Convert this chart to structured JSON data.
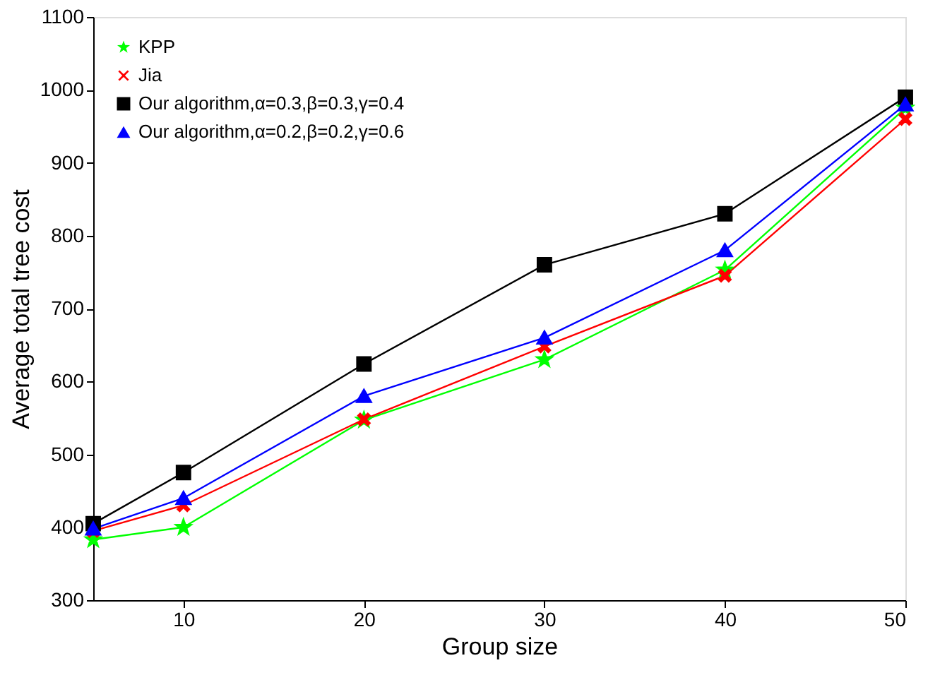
{
  "chart_data": {
    "type": "line",
    "xlabel": "Group size",
    "ylabel": "Average total tree cost",
    "x": [
      5,
      10,
      20,
      30,
      40,
      50
    ],
    "xlim": [
      5,
      50
    ],
    "xticks": [
      10,
      20,
      30,
      40,
      50
    ],
    "ylim": [
      300,
      1100
    ],
    "yticks": [
      300,
      400,
      500,
      600,
      700,
      800,
      900,
      1000,
      1100
    ],
    "grid": false,
    "legend": "top left",
    "series": [
      {
        "name": "KPP",
        "color": "#00ff00",
        "marker": "star",
        "values": [
          383,
          400,
          547,
          630,
          753,
          975
        ]
      },
      {
        "name": "Jia",
        "color": "#ff0000",
        "marker": "cross",
        "values": [
          395,
          430,
          548,
          648,
          745,
          960
        ]
      },
      {
        "name": "Our algorithm,α=0.3,β=0.3,γ=0.4",
        "color": "#000000",
        "marker": "square",
        "values": [
          405,
          475,
          624,
          760,
          830,
          990
        ]
      },
      {
        "name": "Our algorithm,α=0.2,β=0.2,γ=0.6",
        "color": "#0000ff",
        "marker": "triangle",
        "values": [
          398,
          440,
          580,
          660,
          780,
          980
        ]
      }
    ]
  }
}
